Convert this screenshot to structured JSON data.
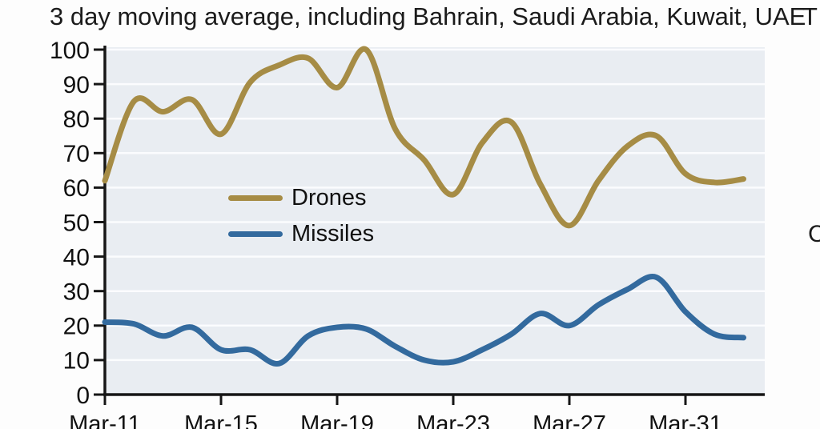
{
  "title": "3 day moving average, including Bahrain, Saudi Arabia, Kuwait, UAE",
  "clipped_text": {
    "title_overflow": "T",
    "right_edge": "C"
  },
  "chart_data": {
    "type": "line",
    "title": "3 day moving average, including Bahrain, Saudi Arabia, Kuwait, UAE",
    "x": [
      "Mar-11",
      "Mar-12",
      "Mar-13",
      "Mar-14",
      "Mar-15",
      "Mar-16",
      "Mar-17",
      "Mar-18",
      "Mar-19",
      "Mar-20",
      "Mar-21",
      "Mar-22",
      "Mar-23",
      "Mar-24",
      "Mar-25",
      "Mar-26",
      "Mar-27",
      "Mar-28",
      "Mar-29",
      "Mar-30",
      "Mar-31",
      "Apr-01",
      "Apr-02"
    ],
    "series": [
      {
        "name": "Drones",
        "color": "#a68c45",
        "values": [
          62,
          85,
          82,
          85.5,
          75.5,
          90.5,
          95.5,
          97.5,
          89,
          100,
          77,
          68,
          58,
          73,
          79,
          61,
          49,
          62,
          72,
          75,
          64,
          61.5,
          62.5
        ]
      },
      {
        "name": "Missiles",
        "color": "#336a9e",
        "values": [
          21,
          20.5,
          17,
          19.5,
          13,
          13,
          9,
          17,
          19.5,
          19,
          14,
          10,
          9.5,
          13,
          17.5,
          23.5,
          20,
          26,
          30.5,
          34,
          24,
          17.5,
          16.5
        ]
      }
    ],
    "ylim": [
      0,
      100
    ],
    "ytick_step": 10,
    "ytick_labels": [
      "0",
      "10",
      "20",
      "30",
      "40",
      "50",
      "60",
      "70",
      "80",
      "90",
      "100"
    ],
    "xticks": [
      {
        "label": "Mar-11",
        "index": 0
      },
      {
        "label": "Mar-15",
        "index": 4
      },
      {
        "label": "Mar-19",
        "index": 8
      },
      {
        "label": "Mar-23",
        "index": 12
      },
      {
        "label": "Mar-27",
        "index": 16
      },
      {
        "label": "Mar-31",
        "index": 20
      }
    ],
    "grid": "horizontal",
    "legend_position": "inside-left",
    "colors": {
      "plot_background": "#e9edf2",
      "gridline": "#fbfcfe",
      "axis": "#161616",
      "tick_text": "#111111"
    }
  }
}
